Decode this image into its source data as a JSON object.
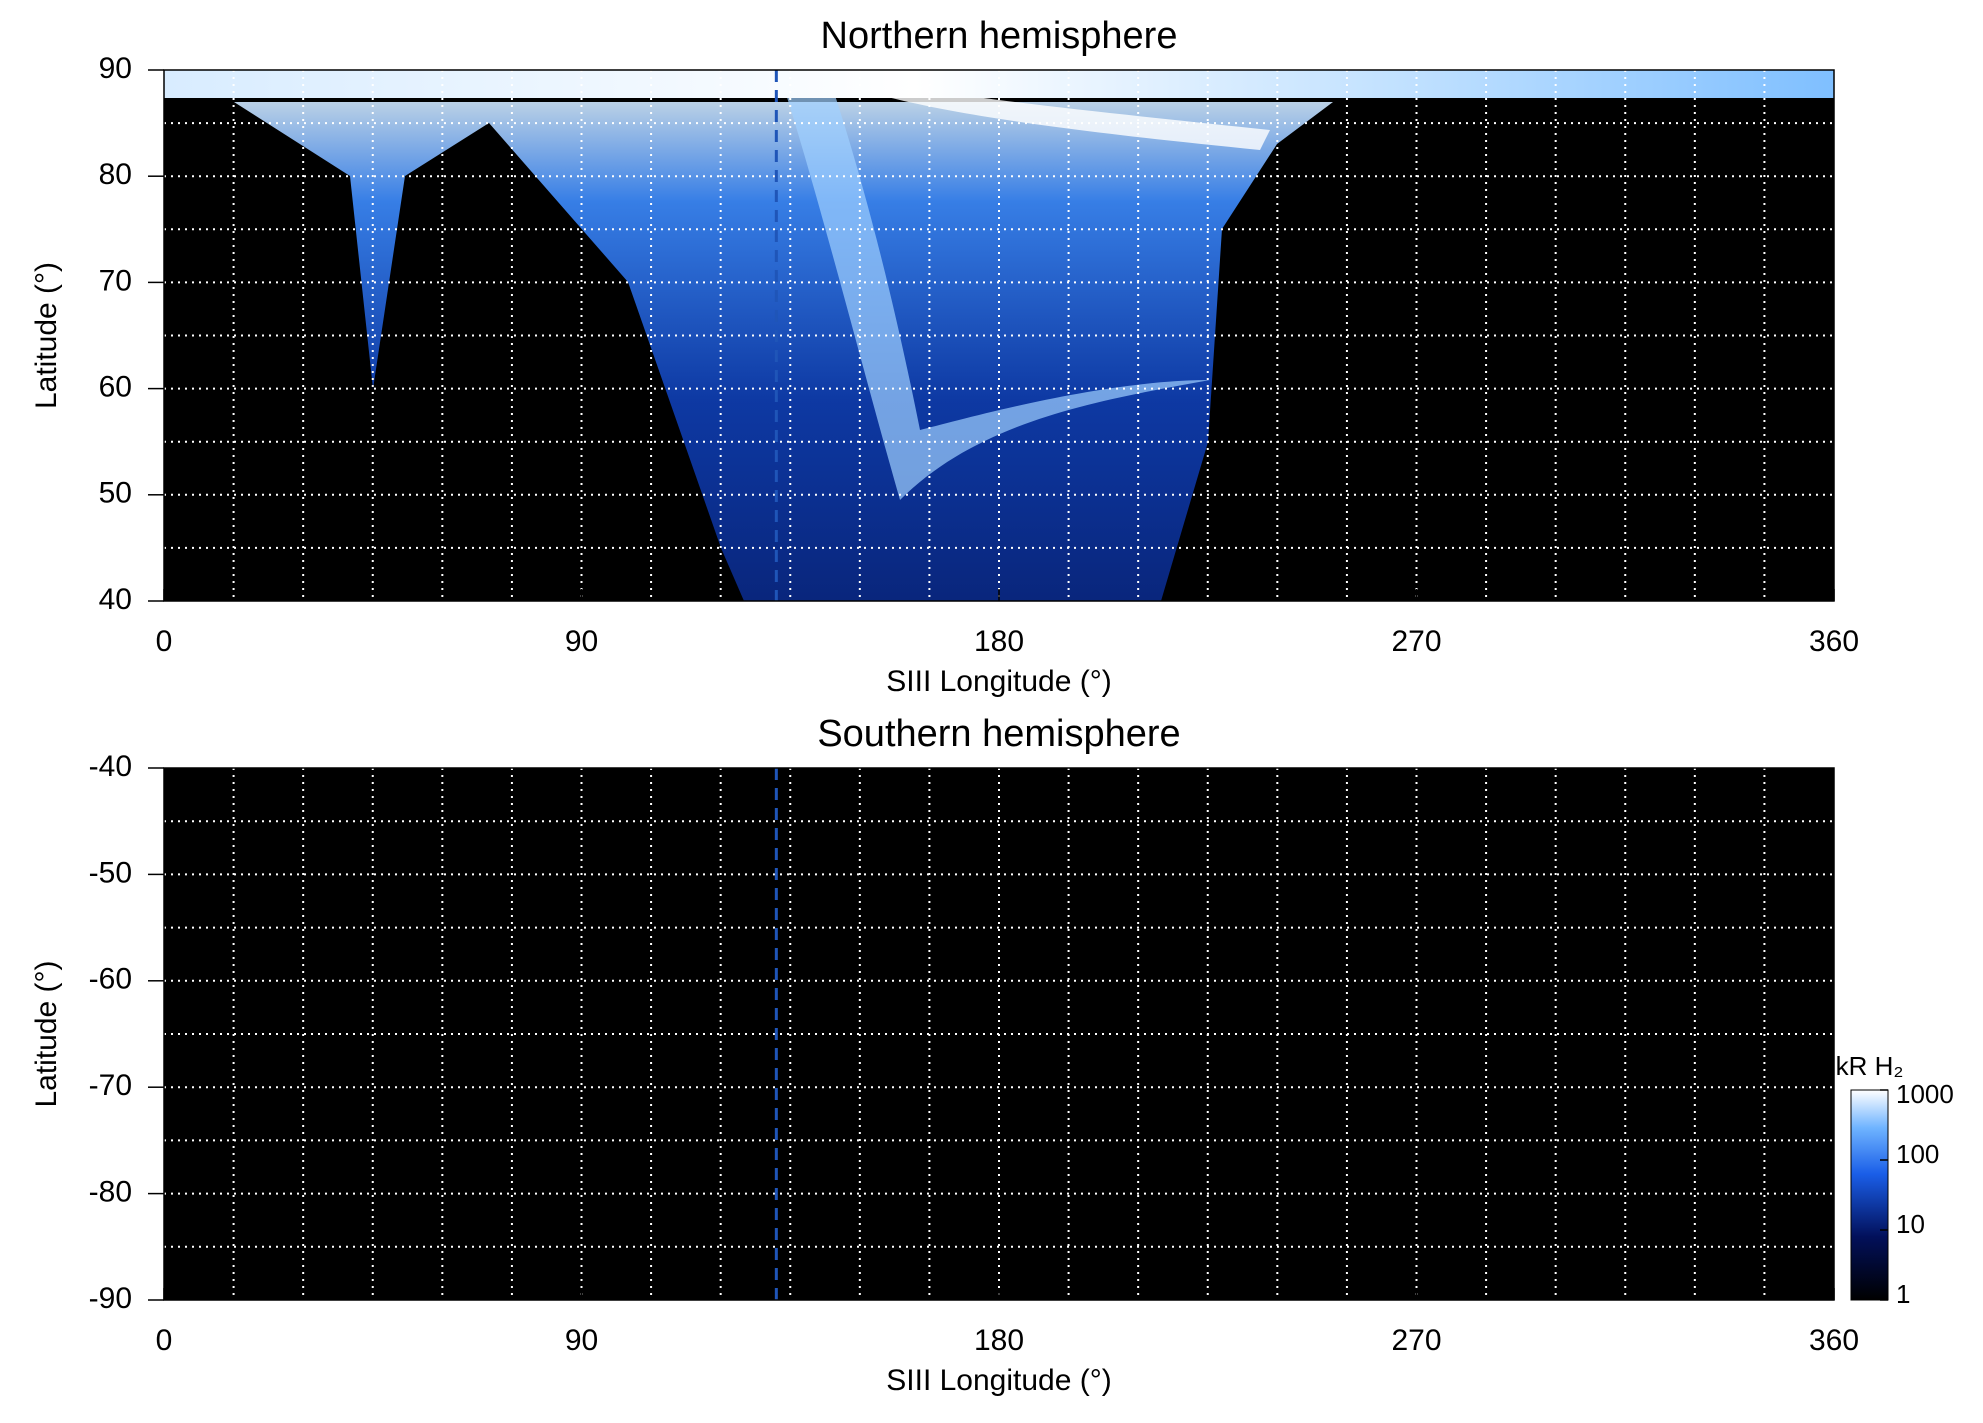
{
  "chart_data": [
    {
      "type": "heatmap",
      "title": "Northern hemisphere",
      "xlabel": "SIII Longitude (°)",
      "ylabel": "Latitude (°)",
      "xlim": [
        0,
        360
      ],
      "xticks": [
        0,
        90,
        180,
        270,
        360
      ],
      "ylim": [
        40,
        90
      ],
      "yticks": [
        40,
        50,
        60,
        70,
        80,
        90
      ],
      "grid": true,
      "xgrid": [
        15,
        30,
        45,
        60,
        75,
        90,
        105,
        120,
        135,
        150,
        165,
        180,
        195,
        210,
        225,
        240,
        255,
        270,
        285,
        300,
        315,
        330,
        345
      ],
      "ygrid": [
        45,
        50,
        55,
        60,
        65,
        70,
        75,
        80,
        85
      ],
      "marker_longitude": 132,
      "marker_color": "#1f55b8"
    },
    {
      "type": "heatmap",
      "title": "Southern hemisphere",
      "xlabel": "SIII Longitude (°)",
      "ylabel": "Latitude (°)",
      "xlim": [
        0,
        360
      ],
      "xticks": [
        0,
        90,
        180,
        270,
        360
      ],
      "ylim": [
        -90,
        -40
      ],
      "yticks": [
        -90,
        -80,
        -70,
        -60,
        -50,
        -40
      ],
      "grid": true,
      "xgrid": [
        15,
        30,
        45,
        60,
        75,
        90,
        105,
        120,
        135,
        150,
        165,
        180,
        195,
        210,
        225,
        240,
        255,
        270,
        285,
        300,
        315,
        330,
        345
      ],
      "ygrid": [
        -85,
        -80,
        -75,
        -70,
        -65,
        -60,
        -55,
        -50,
        -45
      ],
      "marker_longitude": 132,
      "marker_color": "#1f55b8",
      "colorbar": {
        "label": "kR H₂",
        "lim": [
          1,
          1000
        ],
        "ticks": [
          1,
          10,
          100,
          1000
        ],
        "log": true
      }
    }
  ]
}
